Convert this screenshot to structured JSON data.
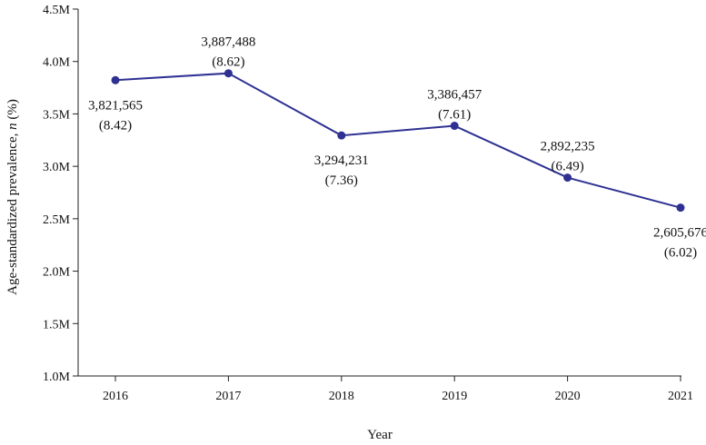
{
  "chart_data": {
    "type": "line",
    "xlabel": "Year",
    "ylabel": "Age-standardized prevalence, n (%)",
    "ylabel_main": "Age-standardized prevalence, ",
    "ylabel_italic": "n",
    "ylabel_tail": " (%)",
    "x": [
      "2016",
      "2017",
      "2018",
      "2019",
      "2020",
      "2021"
    ],
    "series": [
      {
        "values": [
          3821565,
          3887488,
          3294231,
          3386457,
          2892235,
          2605676
        ],
        "percent": [
          8.42,
          8.62,
          7.36,
          7.61,
          6.49,
          6.02
        ],
        "labels": [
          "3,821,565",
          "3,887,488",
          "3,294,231",
          "3,386,457",
          "2,892,235",
          "2,605,676"
        ],
        "percent_labels": [
          "(8.42)",
          "(8.62)",
          "(7.36)",
          "(7.61)",
          "(6.49)",
          "(6.02)"
        ],
        "label_position": [
          "below",
          "above",
          "below",
          "above",
          "above",
          "below"
        ]
      }
    ],
    "ylim": [
      1000000,
      4500000
    ],
    "yticks": [
      1000000,
      1500000,
      2000000,
      2500000,
      3000000,
      3500000,
      4000000,
      4500000
    ],
    "ytick_labels": [
      "1.0M",
      "1.5M",
      "2.0M",
      "2.5M",
      "3.0M",
      "3.5M",
      "4.0M",
      "4.5M"
    ],
    "grid": false,
    "line_color": "#2e3192"
  }
}
